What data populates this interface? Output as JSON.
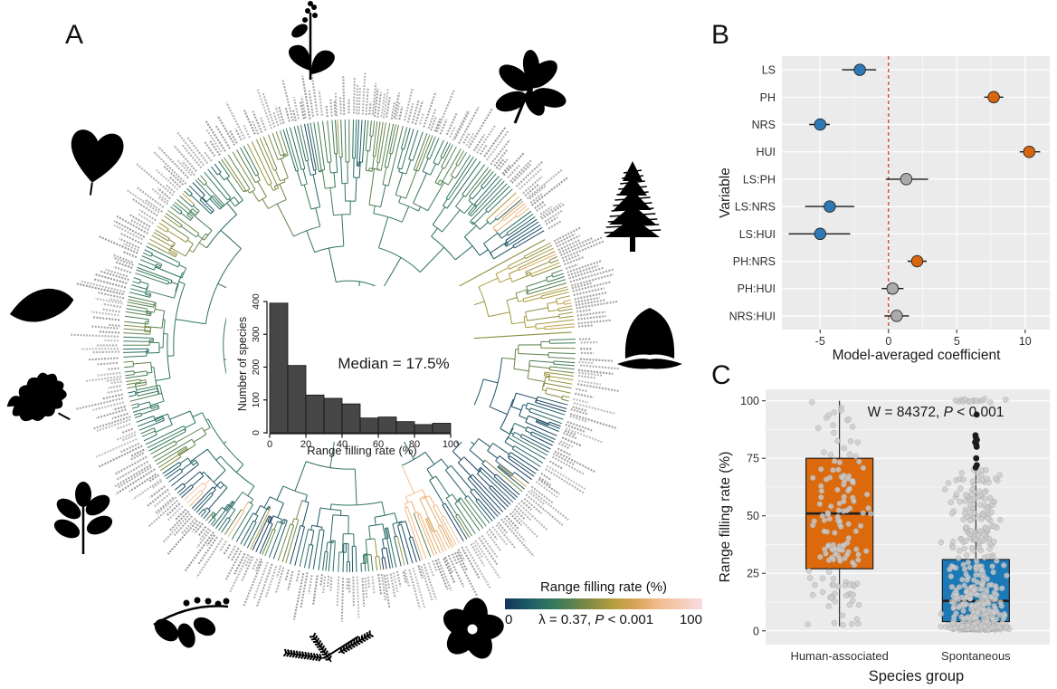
{
  "panels": {
    "a": "A",
    "b": "B",
    "c": "C"
  },
  "colors": {
    "panel_bg": "#EBEBEB",
    "grid_major": "#FFFFFF",
    "axis_text": "#303030",
    "title_text": "#1A1A1A",
    "point_blue": "#2E79B5",
    "point_orange": "#D9650E",
    "point_neutral": "#ABABAB",
    "ci_line": "#1A1A1A",
    "red_dashed": "#D02C20",
    "box_orange": "#DC6A0C",
    "box_blue": "#1B79B7",
    "jitter_fill": "#CDCDCD",
    "jitter_stroke": "#9E9E9E",
    "outlier_dark": "#1C1C1C",
    "hist_bar": "#474747",
    "hist_edge": "#101010",
    "tip_label": "#8D8D8D",
    "silhouette": "#000000",
    "wedge_olive": "#8A8F3D"
  },
  "silhouettes": [
    "flowering-plant",
    "leafy-branch",
    "heart-leaf",
    "elliptic-leaf",
    "oak-leaf",
    "pinnate-leaf",
    "berry-branch",
    "mimosa-leaf",
    "five-petal-flower",
    "acorn",
    "conifer-tree"
  ],
  "chart_data": [
    {
      "id": "phylogeny",
      "type": "circular-tree",
      "description": "Circular phylogenetic tree of urban plant species; branches colored by range filling rate; tiny gray species labels around rim",
      "colormap": [
        "#15335B",
        "#1C5A66",
        "#2E7561",
        "#57824F",
        "#8A8C41",
        "#B59F3F",
        "#DCA45B",
        "#F0BC8C",
        "#F6CBB5",
        "#F9DBE4"
      ],
      "legend": {
        "title": "Range filling rate (%)",
        "min_label": "0",
        "max_label": "100",
        "domain": [
          0,
          100
        ],
        "lambda": {
          "pre": "λ = 0.37, ",
          "italic": "P",
          "post": " < 0.001"
        }
      }
    },
    {
      "id": "histogram",
      "type": "bar",
      "xlabel": "Range filling rate (%)",
      "ylabel": "Number of species",
      "annotation": "Median = 17.5%",
      "bin_width": 10,
      "bin_starts": [
        0,
        10,
        20,
        30,
        40,
        50,
        60,
        70,
        80,
        90
      ],
      "values": [
        395,
        205,
        115,
        105,
        88,
        45,
        48,
        34,
        25,
        29
      ],
      "x_ticks": [
        0,
        20,
        40,
        60,
        80,
        100
      ],
      "y_ticks": [
        0,
        100,
        200,
        300,
        400
      ],
      "ylim": [
        0,
        400
      ],
      "grid": false
    },
    {
      "id": "forest",
      "type": "scatter",
      "xlabel": "Model-averaged coefficient",
      "ylabel": "Variable",
      "x_ticks": [
        -5,
        0,
        5,
        10
      ],
      "x_minor_ticks": [
        -2.5,
        2.5,
        7.5
      ],
      "xlim": [
        -7.8,
        11.8
      ],
      "zero_line": 0,
      "rows": [
        {
          "label": "LS",
          "estimate": -2.1,
          "ci_low": -3.4,
          "ci_high": -0.9,
          "group": "negative"
        },
        {
          "label": "PH",
          "estimate": 7.7,
          "ci_low": 7.0,
          "ci_high": 8.4,
          "group": "positive"
        },
        {
          "label": "NRS",
          "estimate": -5.0,
          "ci_low": -5.8,
          "ci_high": -4.3,
          "group": "negative"
        },
        {
          "label": "HUI",
          "estimate": 10.3,
          "ci_low": 9.6,
          "ci_high": 11.1,
          "group": "positive"
        },
        {
          "label": "LS:PH",
          "estimate": 1.3,
          "ci_low": -0.2,
          "ci_high": 2.9,
          "group": "ns"
        },
        {
          "label": "LS:NRS",
          "estimate": -4.3,
          "ci_low": -6.1,
          "ci_high": -2.5,
          "group": "negative"
        },
        {
          "label": "LS:HUI",
          "estimate": -5.0,
          "ci_low": -7.3,
          "ci_high": -2.8,
          "group": "negative"
        },
        {
          "label": "PH:NRS",
          "estimate": 2.1,
          "ci_low": 1.4,
          "ci_high": 2.8,
          "group": "positive"
        },
        {
          "label": "PH:HUI",
          "estimate": 0.3,
          "ci_low": -0.5,
          "ci_high": 1.1,
          "group": "ns"
        },
        {
          "label": "NRS:HUI",
          "estimate": 0.6,
          "ci_low": -0.3,
          "ci_high": 1.5,
          "group": "ns"
        }
      ]
    },
    {
      "id": "boxplot",
      "type": "boxplot-jitter",
      "xlabel": "Species group",
      "ylabel": "Range filling rate (%)",
      "y_ticks": [
        0,
        25,
        50,
        75,
        100
      ],
      "y_minor_ticks": [
        12.5,
        37.5,
        62.5,
        87.5
      ],
      "ylim": [
        -6,
        105
      ],
      "annotation": {
        "pre": "W = 84372, ",
        "italic": "P",
        "post": " < 0.001"
      },
      "groups": [
        {
          "label": "Human-associated",
          "fill": "orange",
          "q1": 27,
          "median": 51,
          "q3": 75,
          "whisker_low": 2,
          "whisker_high": 100,
          "n_jitter": 150,
          "outliers": []
        },
        {
          "label": "Spontaneous",
          "fill": "blue",
          "q1": 4,
          "median": 13,
          "q3": 31,
          "whisker_low": 0,
          "whisker_high": 70,
          "n_jitter": 440,
          "outliers": [
            71,
            72,
            75,
            80,
            81,
            82,
            83,
            84,
            85,
            94
          ],
          "top_row_value": 100,
          "top_row_n": 16
        }
      ]
    }
  ]
}
